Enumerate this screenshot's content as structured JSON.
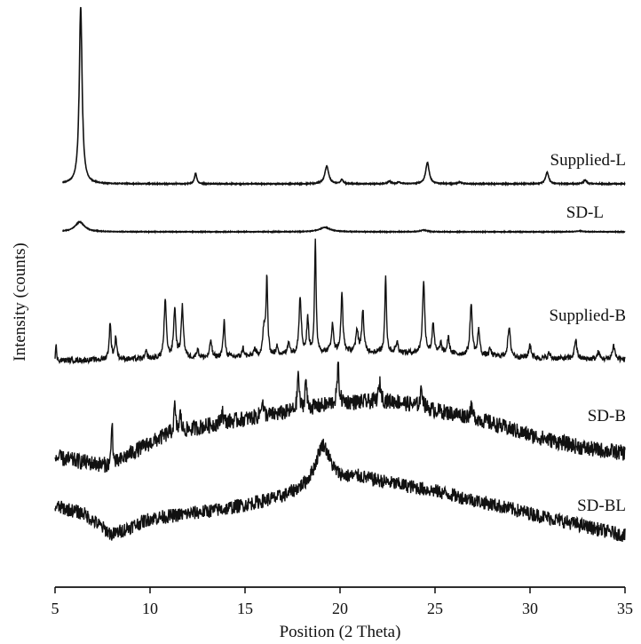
{
  "chart_data": {
    "type": "line",
    "title": "",
    "xlabel": "Position (2 Theta)",
    "ylabel": "Intensity (counts)",
    "xlim": [
      5,
      35
    ],
    "ylim": [
      0,
      660
    ],
    "xticks": [
      "5",
      "10",
      "15",
      "20",
      "25",
      "30",
      "35"
    ],
    "grid": false,
    "legend": "none (series labelled at right end of each trace)",
    "series": [
      {
        "name": "Supplied-L",
        "start": 5.4,
        "noise": 0.4,
        "baseline": [
          [
            5.4,
            453
          ],
          [
            35,
            453
          ]
        ],
        "peaks": [
          [
            6.35,
            199,
            0.09
          ],
          [
            12.4,
            12,
            0.07
          ],
          [
            19.3,
            20,
            0.12
          ],
          [
            20.1,
            5,
            0.07
          ],
          [
            22.6,
            3,
            0.1
          ],
          [
            23.1,
            2,
            0.1
          ],
          [
            24.6,
            24,
            0.11
          ],
          [
            26.3,
            2,
            0.1
          ],
          [
            30.9,
            13,
            0.1
          ],
          [
            32.9,
            4,
            0.1
          ]
        ]
      },
      {
        "name": "SD-L",
        "start": 5.4,
        "noise": 0.3,
        "baseline": [
          [
            5.4,
            399
          ],
          [
            35,
            399
          ]
        ],
        "peaks": [
          [
            6.3,
            11,
            0.3
          ],
          [
            19.2,
            5,
            0.35
          ],
          [
            24.4,
            2,
            0.2
          ],
          [
            32.6,
            1,
            0.2
          ]
        ]
      },
      {
        "name": "Supplied-B",
        "start": 5.0,
        "noise": 3,
        "baseline": [
          [
            5,
            254
          ],
          [
            10,
            256
          ],
          [
            15,
            258
          ],
          [
            20,
            264
          ],
          [
            25,
            262
          ],
          [
            30,
            257
          ],
          [
            35,
            255
          ]
        ],
        "peaks": [
          [
            5.05,
            18,
            0.03
          ],
          [
            7.9,
            40,
            0.06
          ],
          [
            8.2,
            25,
            0.06
          ],
          [
            9.8,
            8,
            0.06
          ],
          [
            10.8,
            65,
            0.07
          ],
          [
            11.3,
            55,
            0.07
          ],
          [
            11.7,
            57,
            0.07
          ],
          [
            12.5,
            10,
            0.06
          ],
          [
            13.2,
            20,
            0.06
          ],
          [
            13.9,
            40,
            0.06
          ],
          [
            14.9,
            10,
            0.06
          ],
          [
            15.5,
            8,
            0.06
          ],
          [
            16.0,
            30,
            0.08
          ],
          [
            16.15,
            85,
            0.05
          ],
          [
            16.7,
            10,
            0.06
          ],
          [
            17.3,
            15,
            0.06
          ],
          [
            17.9,
            65,
            0.07
          ],
          [
            18.3,
            38,
            0.06
          ],
          [
            18.7,
            125,
            0.05
          ],
          [
            19.6,
            30,
            0.07
          ],
          [
            20.1,
            65,
            0.06
          ],
          [
            20.9,
            25,
            0.07
          ],
          [
            21.2,
            48,
            0.06
          ],
          [
            22.4,
            88,
            0.05
          ],
          [
            23.0,
            12,
            0.07
          ],
          [
            24.4,
            80,
            0.07
          ],
          [
            24.9,
            35,
            0.06
          ],
          [
            25.3,
            12,
            0.06
          ],
          [
            25.7,
            18,
            0.07
          ],
          [
            26.9,
            57,
            0.07
          ],
          [
            27.3,
            30,
            0.06
          ],
          [
            27.9,
            8,
            0.06
          ],
          [
            28.9,
            32,
            0.08
          ],
          [
            30.0,
            15,
            0.07
          ],
          [
            31.0,
            6,
            0.06
          ],
          [
            32.4,
            22,
            0.07
          ],
          [
            33.6,
            8,
            0.07
          ],
          [
            34.4,
            16,
            0.08
          ]
        ]
      },
      {
        "name": "SD-B",
        "start": 5.0,
        "noise": 9,
        "baseline": [
          [
            5,
            145
          ],
          [
            6.5,
            140
          ],
          [
            8,
            135
          ],
          [
            9,
            150
          ],
          [
            11,
            172
          ],
          [
            14,
            185
          ],
          [
            17,
            195
          ],
          [
            20,
            207
          ],
          [
            23,
            208
          ],
          [
            25,
            198
          ],
          [
            27,
            190
          ],
          [
            30,
            170
          ],
          [
            33,
            155
          ],
          [
            35,
            150
          ]
        ],
        "peaks": [
          [
            8.0,
            55,
            0.04
          ],
          [
            11.3,
            30,
            0.05
          ],
          [
            11.6,
            20,
            0.05
          ],
          [
            13.8,
            15,
            0.05
          ],
          [
            15.9,
            20,
            0.06
          ],
          [
            17.8,
            45,
            0.05
          ],
          [
            18.2,
            35,
            0.05
          ],
          [
            19.9,
            40,
            0.06
          ],
          [
            22.1,
            20,
            0.08
          ],
          [
            24.3,
            20,
            0.08
          ],
          [
            26.9,
            10,
            0.08
          ]
        ]
      },
      {
        "name": "SD-BL",
        "start": 5.0,
        "noise": 8,
        "baseline": [
          [
            5,
            90
          ],
          [
            6.5,
            82
          ],
          [
            8,
            58
          ],
          [
            10,
            76
          ],
          [
            14,
            87
          ],
          [
            17,
            100
          ],
          [
            18.5,
            112
          ],
          [
            21,
            122
          ],
          [
            25,
            107
          ],
          [
            30,
            82
          ],
          [
            35,
            57
          ]
        ],
        "peaks": [
          [
            19.1,
            45,
            0.45
          ]
        ]
      }
    ]
  }
}
